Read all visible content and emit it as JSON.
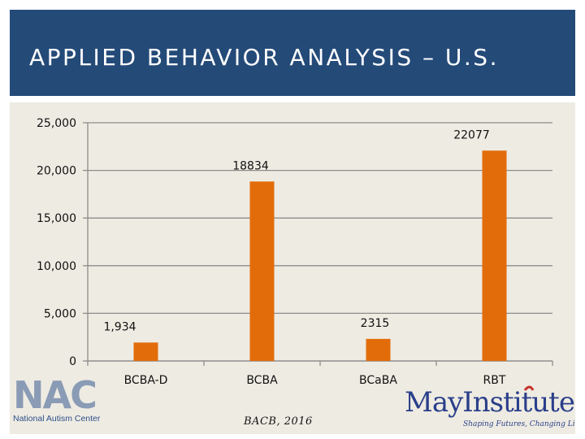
{
  "header": {
    "title": "APPLIED BEHAVIOR ANALYSIS – U.S."
  },
  "source": "BACB, 2016",
  "logos": {
    "nac": {
      "mark": "NAC",
      "text": "National Autism Center",
      "icon": "nac-logo"
    },
    "may": {
      "mark": "MayInstitute",
      "tagline": "Shaping Futures, Changing Lives",
      "icon": "may-institute-logo"
    }
  },
  "colors": {
    "header_bg": "#244a78",
    "panel_bg": "#eeebe2",
    "bar": "#e36c0a",
    "axis": "#8c8c8c"
  },
  "chart_data": {
    "type": "bar",
    "title": "",
    "xlabel": "",
    "ylabel": "",
    "categories": [
      "BCBA-D",
      "BCBA",
      "BCaBA",
      "RBT"
    ],
    "values": [
      1934,
      18834,
      2315,
      22077
    ],
    "data_labels": [
      "1,934",
      "18834",
      "2315",
      "22077"
    ],
    "ylim": [
      0,
      25000
    ],
    "yticks": [
      0,
      5000,
      10000,
      15000,
      20000,
      25000
    ],
    "ytick_labels": [
      "0",
      "5,000",
      "10,000",
      "15,000",
      "20,000",
      "25,000"
    ],
    "grid": true,
    "legend": "none"
  }
}
